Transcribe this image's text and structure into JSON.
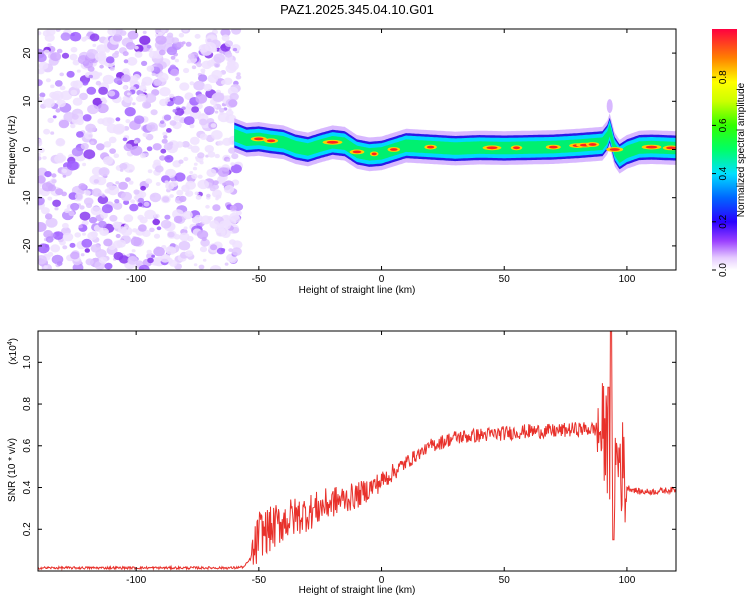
{
  "title": "PAZ1.2025.345.04.10.G01",
  "chart_data": [
    {
      "type": "heatmap",
      "xlabel": "Height of straight line (km)",
      "ylabel": "Frequency (Hz)",
      "xlim": [
        -140,
        120
      ],
      "ylim": [
        -25,
        25
      ],
      "x_ticks": [
        "-100",
        "-50",
        "0",
        "50",
        "100"
      ],
      "y_ticks": [
        "20",
        "10",
        "0",
        "-10",
        "-20"
      ],
      "noise_region_x": [
        -140,
        -58
      ],
      "signal_track": {
        "x": [
          -60,
          -55,
          -50,
          -45,
          -40,
          -35,
          -30,
          -25,
          -20,
          -15,
          -10,
          -5,
          0,
          5,
          10,
          20,
          30,
          40,
          50,
          60,
          70,
          80,
          90,
          92,
          93,
          95,
          97,
          100,
          105,
          110,
          120
        ],
        "frequency": [
          3,
          2,
          2.2,
          1.8,
          1.5,
          0.5,
          0,
          0.8,
          1.5,
          1.2,
          -0.5,
          -1,
          -0.8,
          0,
          0.8,
          0.5,
          0.2,
          0.4,
          0.3,
          0.4,
          0.5,
          0.8,
          1.2,
          2.5,
          4,
          0,
          -1.5,
          -0.5,
          0.4,
          0.5,
          0.3
        ]
      }
    },
    {
      "type": "colorbar",
      "label": "Normalized spectral amplitude",
      "ticks": [
        "0.0",
        "0.2",
        "0.4",
        "0.6",
        "0.8"
      ],
      "range": [
        0,
        1
      ]
    },
    {
      "type": "line",
      "xlabel": "Height of straight line (km)",
      "ylabel": "SNR (10 * v/v)",
      "y_multiplier": "(x10",
      "y_multiplier_exp": "4",
      "y_multiplier_close": ")",
      "xlim": [
        -140,
        120
      ],
      "ylim": [
        0,
        1.15
      ],
      "x_ticks": [
        "-100",
        "-50",
        "0",
        "50",
        "100"
      ],
      "y_ticks": [
        "1.0",
        "0.8",
        "0.6",
        "0.4",
        "0.2"
      ],
      "color": "#e8312b",
      "envelope": {
        "x": [
          -140,
          -60,
          -56,
          -52,
          -50,
          -45,
          -40,
          -30,
          -20,
          -10,
          0,
          10,
          20,
          30,
          40,
          50,
          60,
          70,
          80,
          88,
          90,
          92,
          93,
          94,
          95,
          97,
          100,
          105,
          110,
          120
        ],
        "y": [
          0.015,
          0.015,
          0.02,
          0.08,
          0.18,
          0.2,
          0.24,
          0.28,
          0.33,
          0.36,
          0.43,
          0.52,
          0.6,
          0.64,
          0.65,
          0.66,
          0.67,
          0.67,
          0.68,
          0.68,
          0.66,
          0.62,
          0.55,
          0.45,
          0.5,
          0.55,
          0.4,
          0.38,
          0.38,
          0.39
        ]
      },
      "spikes": [
        {
          "x": 93.5,
          "y": 1.15
        },
        {
          "x": 94.5,
          "y": 0.15
        },
        {
          "x": 92.5,
          "y": 0.88
        }
      ]
    }
  ]
}
